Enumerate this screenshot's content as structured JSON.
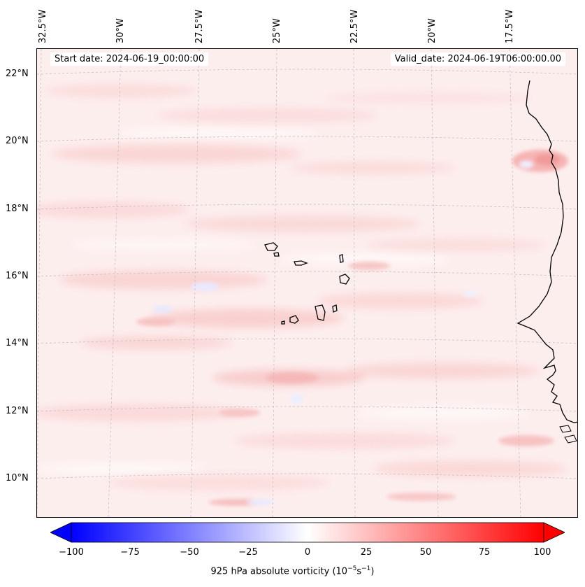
{
  "map": {
    "start_date_text": "Start date: 2024-06-19_00:00:00",
    "valid_date_text": "Valid_date: 2024-06-19T06:00:00.00",
    "longitude_labels": [
      "32.5°W",
      "30°W",
      "27.5°W",
      "25°W",
      "22.5°W",
      "20°W",
      "17.5°W"
    ],
    "latitude_labels": [
      "22°N",
      "20°N",
      "18°N",
      "16°N",
      "14°N",
      "12°N",
      "10°N"
    ],
    "colors": {
      "negative_max": "#0000ff",
      "neutral": "#ffffff",
      "positive_max": "#ff0000",
      "coastline": "#000000",
      "gridline": "#bbbbbb"
    }
  },
  "colorbar": {
    "min": -100,
    "max": 100,
    "ticks": [
      "−100",
      "−75",
      "−50",
      "−25",
      "0",
      "25",
      "50",
      "75",
      "100"
    ],
    "label_prefix": "925 hPa absolute vorticity (10",
    "label_exp1": "−5",
    "label_mid": "s",
    "label_exp2": "−1",
    "label_suffix": ")"
  }
}
